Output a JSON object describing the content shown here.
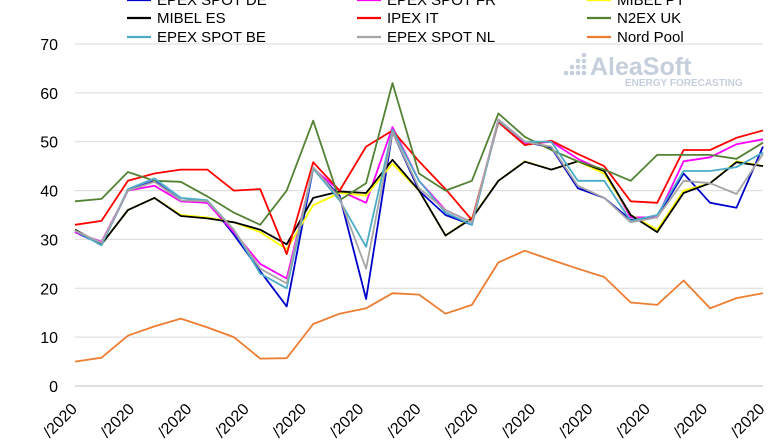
{
  "chart_data": {
    "type": "line",
    "title": "",
    "xlabel": "",
    "ylabel": "",
    "ylim": [
      0,
      70
    ],
    "yticks": [
      0,
      10,
      20,
      30,
      40,
      50,
      60,
      70
    ],
    "grid": true,
    "legend_position": "top",
    "x_tick_labels": [
      "/2020",
      "/2020",
      "/2020",
      "/2020",
      "/2020",
      "/2020",
      "/2020",
      "/2020",
      "/2020",
      "/2020",
      "/2020",
      "/2020",
      "/2020"
    ],
    "series": [
      {
        "name": "EPEX SPOT DE",
        "color": "#0000cc",
        "values": [
          31.5,
          29.0,
          40.0,
          42.0,
          38.0,
          37.8,
          31.0,
          23.5,
          16.3,
          44.5,
          39.0,
          17.8,
          52.0,
          40.0,
          35.0,
          33.0,
          54.5,
          50.0,
          48.8,
          40.5,
          38.5,
          34.0,
          34.5,
          43.5,
          37.5,
          36.5,
          49.0
        ]
      },
      {
        "name": "EPEX SPOT FR",
        "color": "#ff00ff",
        "values": [
          31.5,
          29.5,
          40.0,
          41.0,
          37.8,
          37.5,
          31.5,
          25.0,
          22.0,
          44.5,
          40.0,
          37.5,
          53.0,
          42.0,
          36.0,
          33.5,
          54.5,
          49.5,
          50.0,
          46.5,
          44.0,
          34.5,
          34.5,
          46.0,
          46.8,
          49.5,
          50.5
        ]
      },
      {
        "name": "MIBEL PT",
        "color": "#ffff00",
        "values": [
          32.0,
          29.0,
          36.0,
          38.5,
          35.0,
          34.5,
          33.5,
          31.5,
          28.0,
          37.0,
          39.5,
          39.0,
          45.5,
          40.0,
          30.8,
          34.5,
          42.0,
          46.0,
          44.3,
          46.0,
          43.5,
          35.0,
          32.0,
          40.0,
          41.5,
          46.0,
          45.0
        ]
      },
      {
        "name": "MIBEL ES",
        "color": "#000000",
        "values": [
          32.0,
          29.0,
          36.0,
          38.5,
          34.8,
          34.3,
          33.5,
          32.0,
          29.0,
          38.5,
          39.8,
          39.5,
          46.3,
          40.0,
          30.8,
          34.3,
          42.0,
          45.9,
          44.3,
          46.0,
          44.0,
          35.0,
          31.5,
          39.5,
          41.5,
          45.8,
          45.0
        ]
      },
      {
        "name": "IPEX IT",
        "color": "#ff0000",
        "values": [
          33.0,
          33.8,
          42.0,
          43.5,
          44.3,
          44.3,
          40.0,
          40.3,
          27.0,
          45.8,
          40.0,
          49.0,
          52.3,
          46.0,
          40.3,
          34.0,
          54.0,
          49.3,
          50.2,
          47.5,
          45.0,
          37.8,
          37.5,
          48.3,
          48.3,
          50.8,
          52.3
        ]
      },
      {
        "name": "N2EX UK",
        "color": "#548235",
        "values": [
          37.8,
          38.3,
          43.8,
          42.0,
          41.8,
          38.8,
          35.5,
          33.0,
          40.0,
          54.3,
          38.0,
          41.5,
          62.0,
          43.5,
          40.0,
          42.0,
          55.8,
          51.0,
          48.3,
          46.0,
          44.3,
          42.0,
          47.3,
          47.3,
          47.3,
          46.5,
          49.8
        ]
      },
      {
        "name": "EPEX SPOT BE",
        "color": "#4aacc6",
        "values": [
          31.8,
          28.8,
          40.3,
          42.5,
          38.5,
          38.0,
          32.0,
          23.0,
          20.0,
          44.5,
          38.0,
          28.5,
          52.5,
          42.0,
          35.5,
          33.0,
          54.3,
          50.0,
          50.0,
          42.0,
          42.0,
          33.8,
          35.0,
          44.0,
          44.0,
          44.8,
          47.8
        ]
      },
      {
        "name": "EPEX SPOT NL",
        "color": "#a5a5a5",
        "values": [
          31.8,
          29.3,
          40.0,
          41.8,
          38.0,
          37.8,
          32.0,
          24.0,
          21.0,
          44.8,
          38.5,
          24.0,
          52.0,
          40.5,
          36.0,
          33.5,
          54.5,
          50.0,
          49.0,
          41.0,
          38.5,
          33.5,
          34.5,
          42.0,
          41.5,
          39.3,
          47.5
        ]
      },
      {
        "name": "Nord Pool",
        "color": "#ed7d31",
        "values": [
          5.0,
          5.8,
          10.3,
          12.2,
          13.8,
          12.0,
          10.0,
          5.6,
          5.7,
          12.7,
          14.8,
          15.9,
          19.0,
          18.7,
          14.8,
          16.6,
          25.3,
          27.7,
          25.8,
          24.0,
          22.3,
          17.1,
          16.6,
          21.6,
          15.9,
          18.0,
          19.0
        ]
      }
    ],
    "legend_header_row": [
      "EPEX SPOT DE",
      "EPEX SPOT FR",
      "MIBEL PT"
    ]
  },
  "watermark": {
    "brand": "AleaSoft",
    "tagline": "ENERGY FORECASTING",
    "color": "#c5cfdc"
  }
}
